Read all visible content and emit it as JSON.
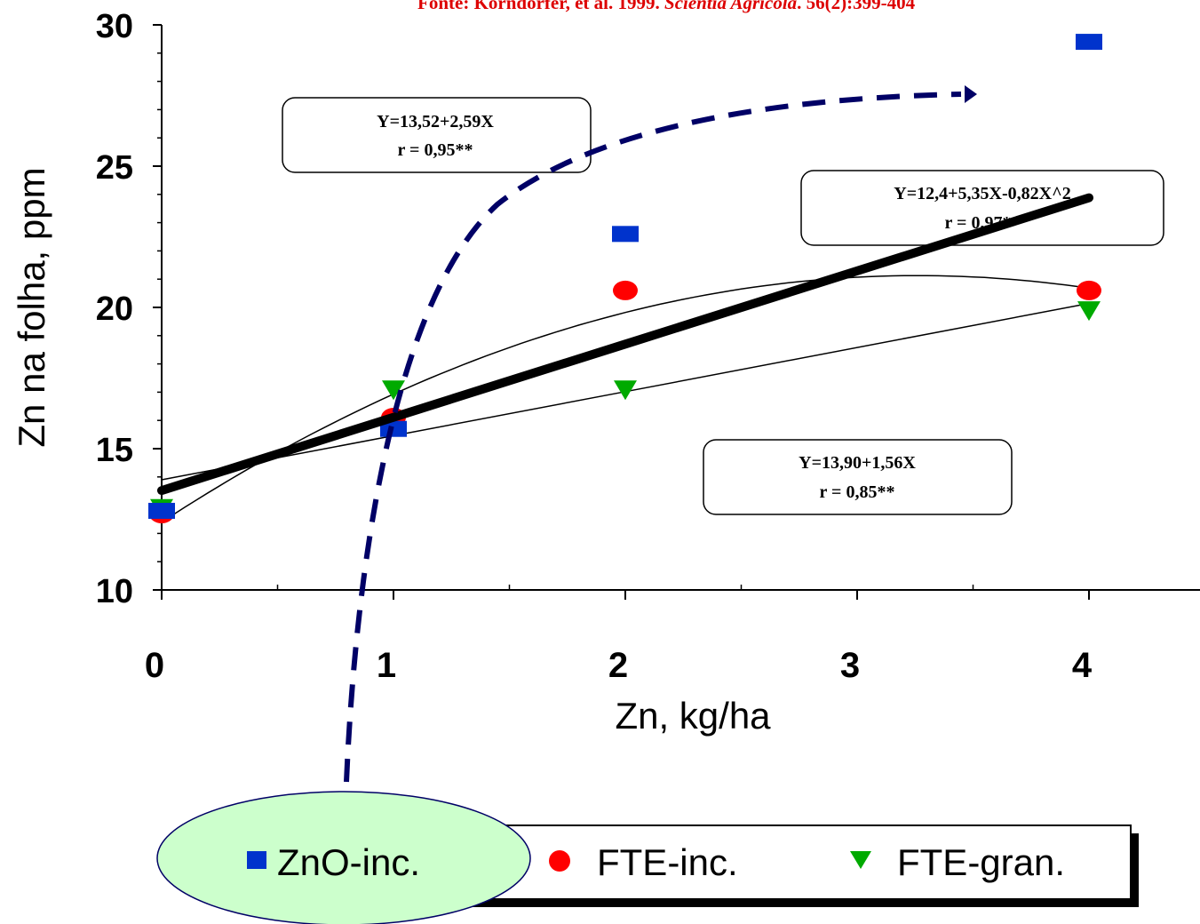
{
  "source_note": {
    "prefix": "Fonte: Korndorfer, et al. 1999. ",
    "journal": "Scientia Agricola",
    "suffix": ". 56(2):399-404"
  },
  "colors": {
    "zno": "#0033cc",
    "fte_inc": "#ff0000",
    "fte_gran": "#00aa00",
    "arrow": "#000066",
    "legend_highlight": "#ccffcc"
  },
  "chart_data": {
    "type": "scatter",
    "x": [
      0,
      1,
      2,
      4
    ],
    "xticks": [
      "0",
      "1",
      "2",
      "3",
      "4"
    ],
    "yticks": [
      "10",
      "15",
      "20",
      "25",
      "30"
    ],
    "xlabel": "Zn, kg/ha",
    "ylabel": "Zn na folha, ppm",
    "ylim": [
      10,
      30
    ],
    "series": [
      {
        "name": "ZnO-inc.",
        "marker": "square",
        "color": "#0033cc",
        "values": [
          12.8,
          15.7,
          22.6,
          29.4
        ]
      },
      {
        "name": "FTE-inc.",
        "marker": "circle",
        "color": "#ff0000",
        "values": [
          12.7,
          16.1,
          20.6,
          20.6
        ]
      },
      {
        "name": "FTE-gran.",
        "marker": "triangle-down",
        "color": "#00aa00",
        "values": [
          12.9,
          17.1,
          17.1,
          19.9
        ]
      }
    ],
    "fits": [
      {
        "series": "ZnO-inc.",
        "equation": "Y=13,52+2,59X",
        "r": "r = 0,95**",
        "type": "linear",
        "coef": [
          13.52,
          2.59
        ]
      },
      {
        "series": "FTE-inc.",
        "equation": "Y=12,4+5,35X-0,82X^2",
        "r": "r = 0,97**",
        "type": "quadratic",
        "coef": [
          12.4,
          5.35,
          -0.82
        ]
      },
      {
        "series": "FTE-gran.",
        "equation": "Y=13,90+1,56X",
        "r": "r = 0,85**",
        "type": "linear",
        "coef": [
          13.9,
          1.56
        ]
      }
    ],
    "legend_position": "bottom"
  }
}
